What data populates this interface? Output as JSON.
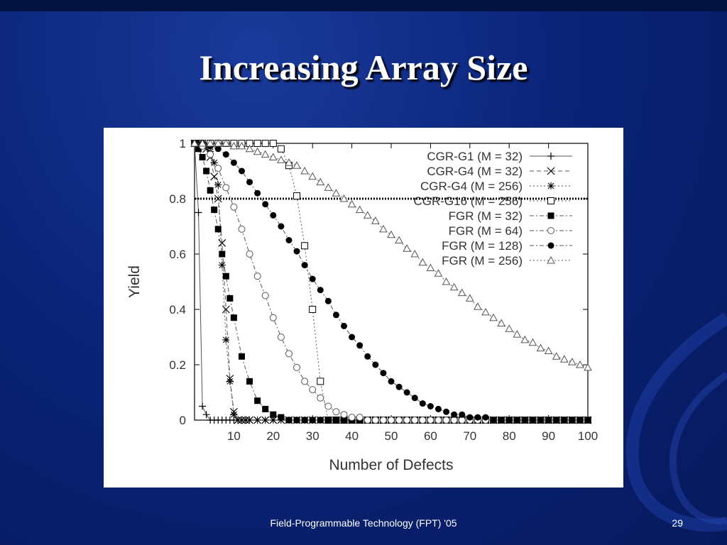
{
  "slide": {
    "title": "Increasing Array Size",
    "footer": "Field-Programmable Technology (FPT) '05",
    "page_number": "29"
  },
  "chart_data": {
    "type": "line",
    "xlabel": "Number of Defects",
    "ylabel": "Yield",
    "xlim": [
      0,
      100
    ],
    "ylim": [
      0,
      1
    ],
    "xticks": [
      10,
      20,
      30,
      40,
      50,
      60,
      70,
      80,
      90,
      100
    ],
    "yticks": [
      0,
      0.2,
      0.4,
      0.6,
      0.8,
      1
    ],
    "ytick_labels": [
      "0",
      "0.2",
      "0.4",
      "0.6",
      "0.8",
      "1"
    ],
    "grid": false,
    "legend_position": "top-right",
    "reference_line_y": 0.8,
    "series": [
      {
        "name": "CGR-G1 (M = 32)",
        "marker": "plus",
        "dash": "solid",
        "x": [
          0,
          1,
          2,
          3,
          4,
          5,
          6,
          7,
          8,
          9,
          10
        ],
        "y": [
          1,
          0.75,
          0.05,
          0.02,
          0,
          0,
          0,
          0,
          0,
          0,
          0
        ]
      },
      {
        "name": "CGR-G4 (M = 32)",
        "marker": "cross",
        "dash": "dashed",
        "x": [
          0,
          1,
          2,
          3,
          4,
          5,
          6,
          7,
          8,
          9,
          10,
          11,
          12,
          13,
          14,
          16,
          18,
          20,
          22,
          24,
          26,
          28,
          30,
          32,
          34,
          36,
          38,
          40,
          42,
          44,
          46,
          48,
          50,
          52,
          54,
          56,
          58,
          60,
          62,
          64,
          66,
          68,
          70,
          72,
          74,
          76,
          78,
          80,
          82,
          84,
          86,
          88,
          90,
          92,
          94,
          96,
          98,
          100
        ],
        "y": [
          1,
          1,
          1,
          0.98,
          0.95,
          0.88,
          0.8,
          0.64,
          0.4,
          0.15,
          0.03,
          0,
          0,
          0,
          0,
          0,
          0,
          0,
          0,
          0,
          0,
          0,
          0,
          0,
          0,
          0,
          0,
          0,
          0,
          0,
          0,
          0,
          0,
          0,
          0,
          0,
          0,
          0,
          0,
          0,
          0,
          0,
          0,
          0,
          0,
          0,
          0,
          0,
          0,
          0,
          0,
          0,
          0,
          0,
          0,
          0,
          0,
          0
        ]
      },
      {
        "name": "CGR-G4 (M = 256)",
        "marker": "star",
        "dash": "dotted",
        "x": [
          0,
          1,
          2,
          3,
          4,
          5,
          6,
          7,
          8,
          9,
          10,
          11,
          12,
          13,
          14,
          16,
          18,
          20,
          22,
          24,
          26,
          28,
          30,
          32,
          34,
          36,
          38,
          40,
          42,
          44,
          46,
          48,
          50,
          52,
          54,
          56,
          58,
          60,
          62,
          64,
          66,
          68,
          70,
          72,
          74,
          76,
          78,
          80,
          82,
          84,
          86,
          88,
          90,
          92,
          94,
          96,
          98,
          100
        ],
        "y": [
          1,
          1,
          1,
          0.99,
          0.97,
          0.93,
          0.85,
          0.56,
          0.29,
          0.14,
          0.02,
          0,
          0,
          0,
          0,
          0,
          0,
          0,
          0,
          0,
          0,
          0,
          0,
          0,
          0,
          0,
          0,
          0,
          0,
          0,
          0,
          0,
          0,
          0,
          0,
          0,
          0,
          0,
          0,
          0,
          0,
          0,
          0,
          0,
          0,
          0,
          0,
          0,
          0,
          0,
          0,
          0,
          0,
          0,
          0,
          0,
          0,
          0
        ]
      },
      {
        "name": "CGR-G16 (M = 256)",
        "marker": "square-open",
        "dash": "dotted",
        "x": [
          0,
          2,
          4,
          6,
          8,
          10,
          12,
          14,
          16,
          18,
          20,
          22,
          24,
          26,
          28,
          30,
          32,
          34,
          36,
          38,
          40,
          42,
          44,
          46,
          48,
          50,
          52,
          54,
          56,
          58,
          60,
          62,
          64,
          66,
          68,
          70,
          72,
          74,
          76,
          78,
          80,
          82,
          84,
          86,
          88,
          90,
          92,
          94,
          96,
          98,
          100
        ],
        "y": [
          1,
          1,
          1,
          1,
          1,
          1,
          1,
          1,
          1,
          1,
          1,
          0.98,
          0.92,
          0.81,
          0.63,
          0.4,
          0.14,
          0,
          0,
          0,
          0,
          0,
          0,
          0,
          0,
          0,
          0,
          0,
          0,
          0,
          0,
          0,
          0,
          0,
          0,
          0,
          0,
          0,
          0,
          0,
          0,
          0,
          0,
          0,
          0,
          0,
          0,
          0,
          0,
          0,
          0
        ]
      },
      {
        "name": "FGR (M = 32)",
        "marker": "square-filled",
        "dash": "dashdot",
        "x": [
          0,
          1,
          2,
          3,
          4,
          5,
          6,
          7,
          8,
          9,
          10,
          12,
          14,
          16,
          18,
          20,
          22,
          24,
          26,
          28,
          30,
          32,
          34,
          36,
          38,
          40,
          42,
          44,
          46,
          48,
          50,
          52,
          54,
          56,
          58,
          60,
          62,
          64,
          66,
          68,
          70,
          72,
          74,
          76,
          78,
          80,
          82,
          84,
          86,
          88,
          90,
          92,
          94,
          96,
          98,
          100
        ],
        "y": [
          1,
          0.98,
          0.95,
          0.9,
          0.83,
          0.76,
          0.69,
          0.6,
          0.52,
          0.44,
          0.37,
          0.23,
          0.14,
          0.07,
          0.04,
          0.02,
          0.01,
          0,
          0,
          0,
          0,
          0,
          0,
          0,
          0,
          0,
          0,
          0,
          0,
          0,
          0,
          0,
          0,
          0,
          0,
          0,
          0,
          0,
          0,
          0,
          0,
          0,
          0,
          0,
          0,
          0,
          0,
          0,
          0,
          0,
          0,
          0,
          0,
          0,
          0,
          0
        ]
      },
      {
        "name": "FGR (M = 64)",
        "marker": "circle-open",
        "dash": "dashdot",
        "x": [
          0,
          2,
          4,
          6,
          8,
          10,
          12,
          14,
          16,
          18,
          20,
          22,
          24,
          26,
          28,
          30,
          32,
          34,
          36,
          38,
          40,
          42,
          44,
          46,
          48,
          50,
          52,
          54,
          56,
          58,
          60,
          62,
          64,
          66,
          68,
          70,
          72,
          74,
          76,
          78,
          80,
          82,
          84,
          86,
          88,
          90,
          92,
          94,
          96,
          98,
          100
        ],
        "y": [
          1,
          0.99,
          0.96,
          0.91,
          0.84,
          0.77,
          0.69,
          0.6,
          0.52,
          0.45,
          0.37,
          0.3,
          0.24,
          0.19,
          0.14,
          0.11,
          0.08,
          0.05,
          0.03,
          0.02,
          0.01,
          0.01,
          0,
          0,
          0,
          0,
          0,
          0,
          0,
          0,
          0,
          0,
          0,
          0,
          0,
          0,
          0,
          0,
          0,
          0,
          0,
          0,
          0,
          0,
          0,
          0,
          0,
          0,
          0,
          0,
          0
        ]
      },
      {
        "name": "FGR (M = 128)",
        "marker": "circle-filled",
        "dash": "dashdot",
        "x": [
          0,
          2,
          4,
          6,
          8,
          10,
          12,
          14,
          16,
          18,
          20,
          22,
          24,
          26,
          28,
          30,
          32,
          34,
          36,
          38,
          40,
          42,
          44,
          46,
          48,
          50,
          52,
          54,
          56,
          58,
          60,
          62,
          64,
          66,
          68,
          70,
          72,
          74,
          76,
          78,
          80,
          82,
          84,
          86,
          88,
          90,
          92,
          94,
          96,
          98,
          100
        ],
        "y": [
          1,
          1,
          0.99,
          0.98,
          0.96,
          0.93,
          0.9,
          0.86,
          0.82,
          0.78,
          0.74,
          0.7,
          0.65,
          0.61,
          0.56,
          0.51,
          0.47,
          0.43,
          0.38,
          0.34,
          0.3,
          0.27,
          0.23,
          0.2,
          0.17,
          0.14,
          0.12,
          0.1,
          0.08,
          0.06,
          0.05,
          0.04,
          0.03,
          0.02,
          0.02,
          0.01,
          0.01,
          0.01,
          0,
          0,
          0,
          0,
          0,
          0,
          0,
          0,
          0,
          0,
          0,
          0,
          0
        ]
      },
      {
        "name": "FGR (M = 256)",
        "marker": "triangle-open",
        "dash": "dotted",
        "x": [
          0,
          2,
          4,
          6,
          8,
          10,
          12,
          14,
          16,
          18,
          20,
          22,
          24,
          26,
          28,
          30,
          32,
          34,
          36,
          38,
          40,
          42,
          44,
          46,
          48,
          50,
          52,
          54,
          56,
          58,
          60,
          62,
          64,
          66,
          68,
          70,
          72,
          74,
          76,
          78,
          80,
          82,
          84,
          86,
          88,
          90,
          92,
          94,
          96,
          98,
          100
        ],
        "y": [
          1,
          1,
          1,
          1,
          1,
          0.99,
          0.99,
          0.98,
          0.97,
          0.96,
          0.95,
          0.94,
          0.93,
          0.92,
          0.9,
          0.88,
          0.86,
          0.84,
          0.82,
          0.8,
          0.78,
          0.76,
          0.74,
          0.72,
          0.69,
          0.67,
          0.65,
          0.62,
          0.6,
          0.57,
          0.55,
          0.53,
          0.5,
          0.48,
          0.46,
          0.44,
          0.41,
          0.39,
          0.37,
          0.35,
          0.33,
          0.31,
          0.29,
          0.28,
          0.26,
          0.25,
          0.23,
          0.22,
          0.21,
          0.2,
          0.19
        ]
      }
    ]
  }
}
